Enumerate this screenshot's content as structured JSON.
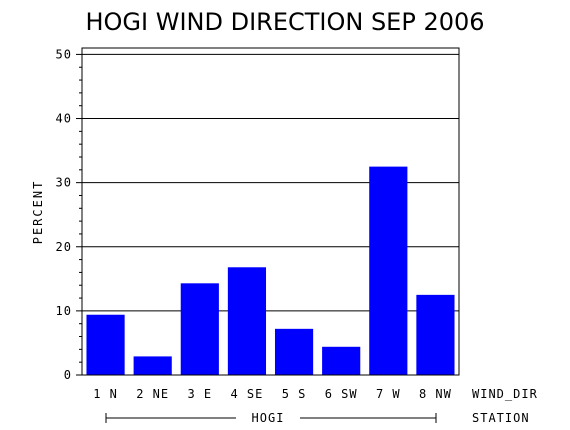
{
  "chart_data": {
    "type": "bar",
    "title": "HOGI WIND DIRECTION SEP 2006",
    "ylabel": "PERCENT",
    "xlabel": "WIND_DIR",
    "group_label": "HOGI",
    "group_axis_label": "STATION",
    "categories": [
      "1 N",
      "2 NE",
      "3 E",
      "4 SE",
      "5 S",
      "6 SW",
      "7 W",
      "8 NW"
    ],
    "values": [
      9.4,
      2.9,
      14.3,
      16.8,
      7.2,
      4.4,
      32.5,
      12.5
    ],
    "ylim": [
      0,
      51
    ],
    "yticks": [
      0,
      10,
      20,
      30,
      40,
      50
    ],
    "ytick_labels": [
      "0",
      "10",
      "20",
      "30",
      "40",
      "50"
    ],
    "grid": true,
    "bar_color": "#0000ff"
  }
}
